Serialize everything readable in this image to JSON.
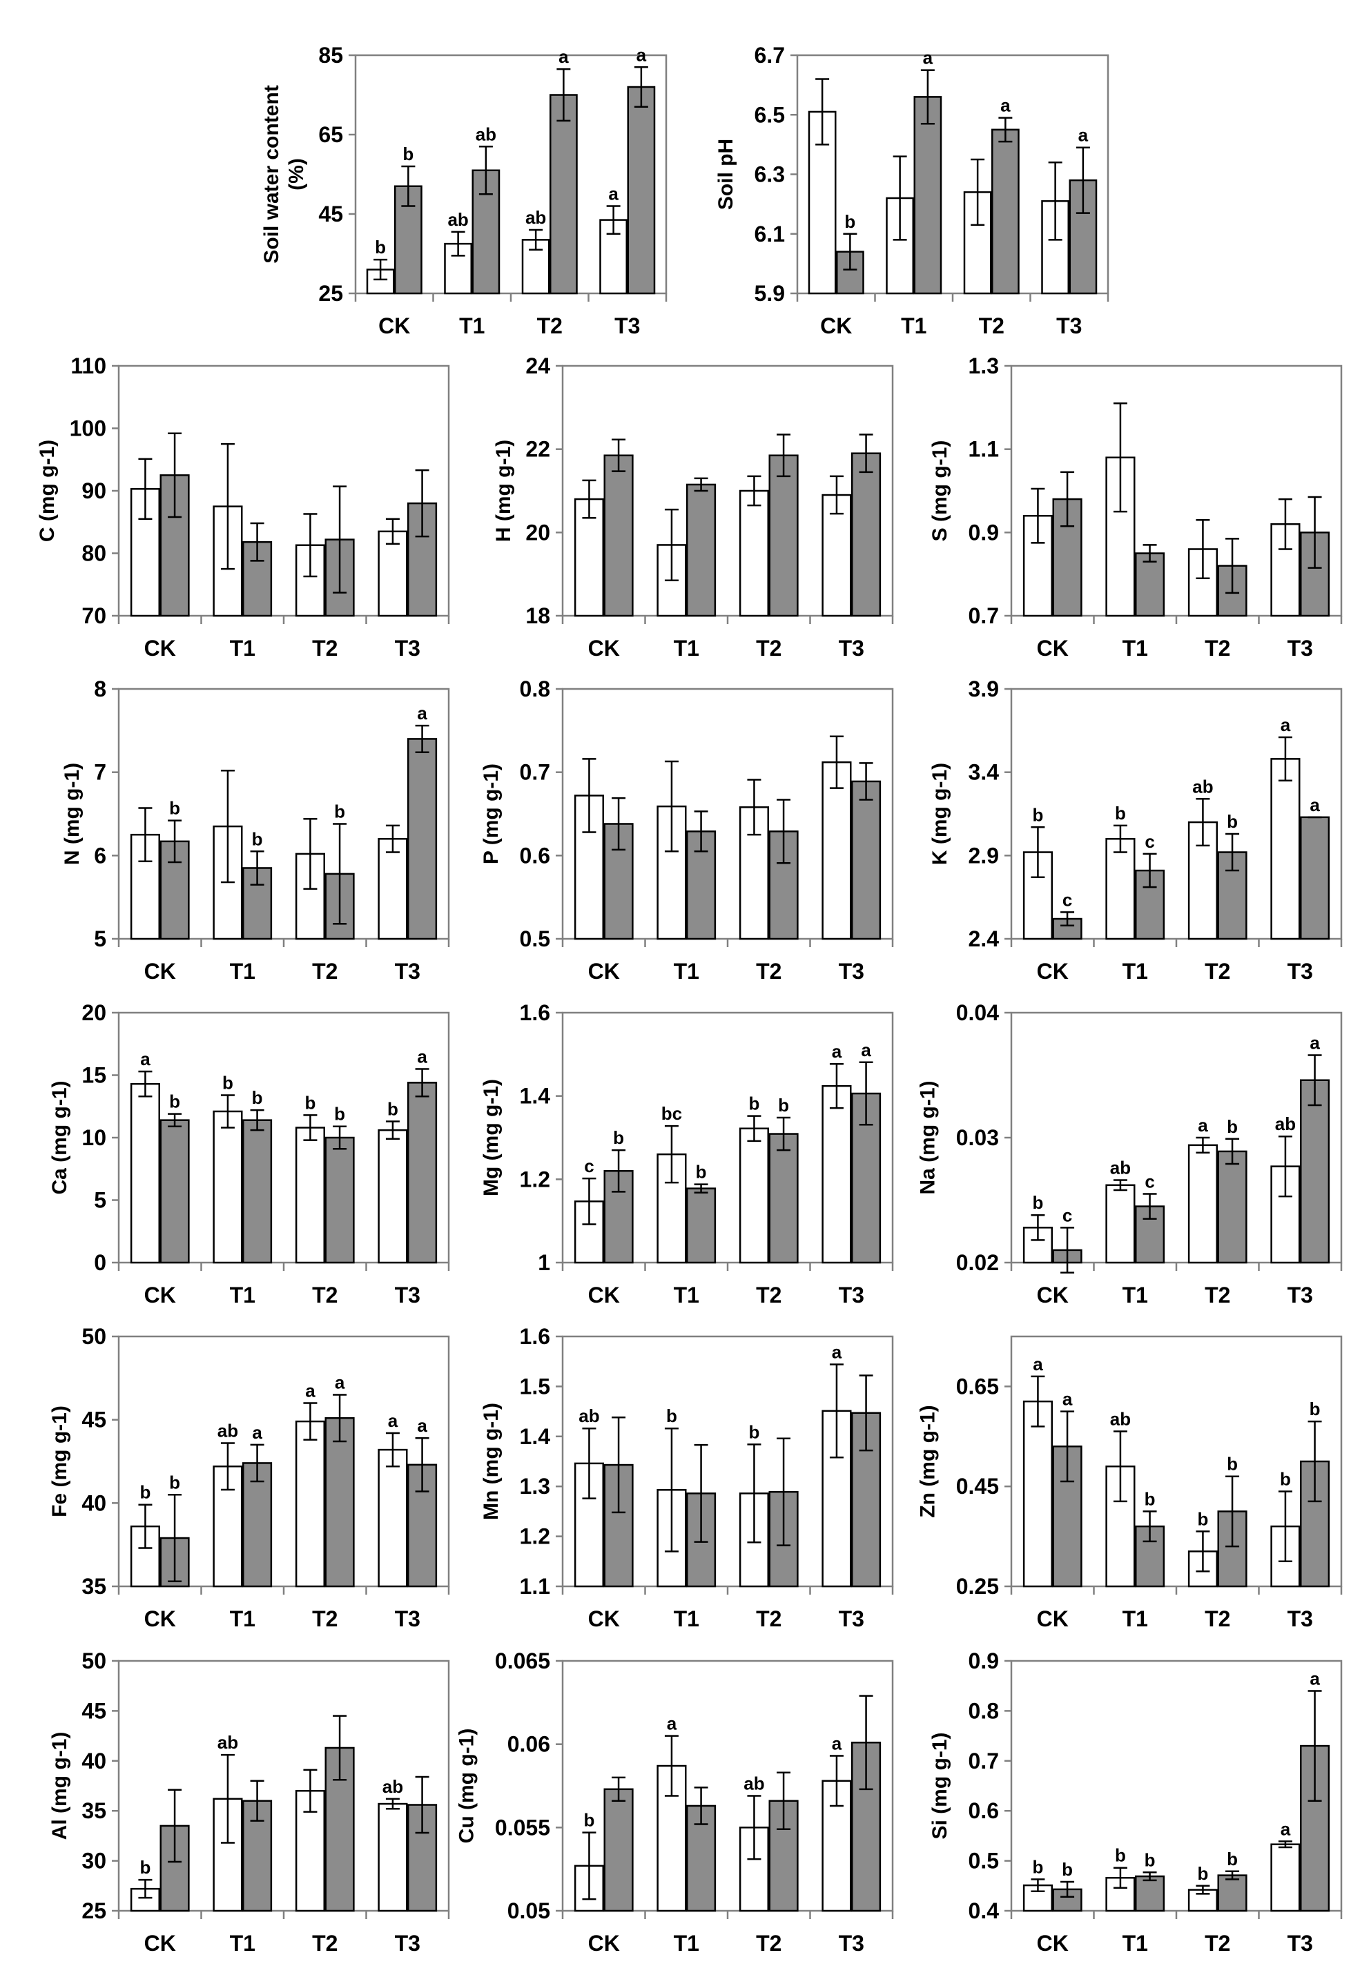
{
  "categories": [
    "CK",
    "T1",
    "T2",
    "T3"
  ],
  "colors": {
    "control": "#ffffff",
    "treated": "#8c8c8c",
    "frame": "#808080",
    "bar_stroke": "#000000",
    "text": "#000000"
  },
  "chart_data": [
    {
      "type": "bar",
      "ylabel_lines": [
        "Soil water content",
        "(%)"
      ],
      "ylim": [
        25,
        85
      ],
      "ticks": [
        25,
        45,
        65,
        85
      ],
      "series": [
        {
          "name": "control",
          "values": [
            31,
            37.5,
            38.5,
            43.5
          ],
          "errors": [
            2.5,
            3,
            2.5,
            3.5
          ],
          "letters": [
            "b",
            "ab",
            "ab",
            "a"
          ]
        },
        {
          "name": "treated",
          "values": [
            52,
            56,
            75,
            77
          ],
          "errors": [
            5,
            6,
            6.5,
            5
          ],
          "letters": [
            "b",
            "ab",
            "a",
            "a"
          ]
        }
      ]
    },
    {
      "type": "bar",
      "ylabel_lines": [
        "Soil pH"
      ],
      "ylim": [
        5.9,
        6.7
      ],
      "ticks": [
        5.9,
        6.1,
        6.3,
        6.5,
        6.7
      ],
      "series": [
        {
          "name": "control",
          "values": [
            6.51,
            6.22,
            6.24,
            6.21
          ],
          "errors": [
            0.11,
            0.14,
            0.11,
            0.13
          ],
          "letters": [
            "",
            "",
            "",
            ""
          ]
        },
        {
          "name": "treated",
          "values": [
            6.04,
            6.56,
            6.45,
            6.28
          ],
          "errors": [
            0.06,
            0.09,
            0.04,
            0.11
          ],
          "letters": [
            "b",
            "a",
            "a",
            "a"
          ]
        }
      ]
    },
    {
      "type": "bar",
      "ylabel_lines": [
        "C (mg g-1)"
      ],
      "ylim": [
        70,
        110
      ],
      "ticks": [
        70,
        80,
        90,
        100,
        110
      ],
      "series": [
        {
          "name": "control",
          "values": [
            90.3,
            87.5,
            81.3,
            83.5
          ],
          "errors": [
            4.8,
            10,
            5,
            2
          ],
          "letters": [
            "",
            "",
            "",
            ""
          ]
        },
        {
          "name": "treated",
          "values": [
            92.5,
            81.8,
            82.2,
            88
          ],
          "errors": [
            6.7,
            3,
            8.5,
            5.3
          ],
          "letters": [
            "",
            "",
            "",
            ""
          ]
        }
      ]
    },
    {
      "type": "bar",
      "ylabel_lines": [
        "H (mg g-1)"
      ],
      "ylim": [
        18,
        24
      ],
      "ticks": [
        18,
        20,
        22,
        24
      ],
      "series": [
        {
          "name": "control",
          "values": [
            20.8,
            19.7,
            21,
            20.9
          ],
          "errors": [
            0.45,
            0.85,
            0.35,
            0.45
          ],
          "letters": [
            "",
            "",
            "",
            ""
          ]
        },
        {
          "name": "treated",
          "values": [
            21.85,
            21.15,
            21.85,
            21.9
          ],
          "errors": [
            0.38,
            0.15,
            0.5,
            0.45
          ],
          "letters": [
            "",
            "",
            "",
            ""
          ]
        }
      ]
    },
    {
      "type": "bar",
      "ylabel_lines": [
        "S (mg g-1)"
      ],
      "ylim": [
        0.7,
        1.3
      ],
      "ticks": [
        0.7,
        0.9,
        1.1,
        1.3
      ],
      "series": [
        {
          "name": "control",
          "values": [
            0.94,
            1.08,
            0.86,
            0.92
          ],
          "errors": [
            0.065,
            0.13,
            0.07,
            0.06
          ],
          "letters": [
            "",
            "",
            "",
            ""
          ]
        },
        {
          "name": "treated",
          "values": [
            0.98,
            0.85,
            0.82,
            0.9
          ],
          "errors": [
            0.065,
            0.02,
            0.065,
            0.085
          ],
          "letters": [
            "",
            "",
            "",
            ""
          ]
        }
      ]
    },
    {
      "type": "bar",
      "ylabel_lines": [
        "N (mg g-1)"
      ],
      "ylim": [
        5,
        8
      ],
      "ticks": [
        5,
        6,
        7,
        8
      ],
      "series": [
        {
          "name": "control",
          "values": [
            6.25,
            6.35,
            6.02,
            6.2
          ],
          "errors": [
            0.32,
            0.67,
            0.42,
            0.16
          ],
          "letters": [
            "",
            "",
            "",
            ""
          ]
        },
        {
          "name": "treated",
          "values": [
            6.17,
            5.85,
            5.78,
            7.4
          ],
          "errors": [
            0.25,
            0.2,
            0.6,
            0.16
          ],
          "letters": [
            "b",
            "b",
            "b",
            "a"
          ]
        }
      ]
    },
    {
      "type": "bar",
      "ylabel_lines": [
        "P (mg g-1)"
      ],
      "ylim": [
        0.5,
        0.8
      ],
      "ticks": [
        0.5,
        0.6,
        0.7,
        0.8
      ],
      "series": [
        {
          "name": "control",
          "values": [
            0.672,
            0.659,
            0.658,
            0.712
          ],
          "errors": [
            0.044,
            0.054,
            0.033,
            0.031
          ],
          "letters": [
            "",
            "",
            "",
            ""
          ]
        },
        {
          "name": "treated",
          "values": [
            0.638,
            0.629,
            0.629,
            0.689
          ],
          "errors": [
            0.031,
            0.024,
            0.038,
            0.022
          ],
          "letters": [
            "",
            "",
            "",
            ""
          ]
        }
      ]
    },
    {
      "type": "bar",
      "ylabel_lines": [
        "K (mg g-1)"
      ],
      "ylim": [
        2.4,
        3.9
      ],
      "ticks": [
        2.4,
        2.9,
        3.4,
        3.9
      ],
      "series": [
        {
          "name": "control",
          "values": [
            2.92,
            3.0,
            3.1,
            3.48
          ],
          "errors": [
            0.15,
            0.08,
            0.14,
            0.13
          ],
          "letters": [
            "b",
            "b",
            "ab",
            "a"
          ]
        },
        {
          "name": "treated",
          "values": [
            2.52,
            2.81,
            2.92,
            3.13
          ],
          "errors": [
            0.04,
            0.1,
            0.11,
            0.0
          ],
          "letters": [
            "c",
            "c",
            "b",
            "a"
          ]
        }
      ]
    },
    {
      "type": "bar",
      "ylabel_lines": [
        "Ca (mg g-1)"
      ],
      "ylim": [
        0,
        20
      ],
      "ticks": [
        0,
        5,
        10,
        15,
        20
      ],
      "series": [
        {
          "name": "control",
          "values": [
            14.3,
            12.1,
            10.8,
            10.6
          ],
          "errors": [
            1,
            1.3,
            1,
            0.7
          ],
          "letters": [
            "a",
            "b",
            "b",
            "b"
          ]
        },
        {
          "name": "treated",
          "values": [
            11.4,
            11.4,
            10,
            14.4
          ],
          "errors": [
            0.5,
            0.8,
            0.9,
            1.1
          ],
          "letters": [
            "b",
            "b",
            "b",
            "a"
          ]
        }
      ]
    },
    {
      "type": "bar",
      "ylabel_lines": [
        "Mg (mg g-1)"
      ],
      "ylim": [
        1,
        1.6
      ],
      "ticks": [
        1,
        1.2,
        1.4,
        1.6
      ],
      "series": [
        {
          "name": "control",
          "values": [
            1.147,
            1.26,
            1.322,
            1.424
          ],
          "errors": [
            0.055,
            0.068,
            0.03,
            0.053
          ],
          "letters": [
            "c",
            "bc",
            "b",
            "a"
          ]
        },
        {
          "name": "treated",
          "values": [
            1.22,
            1.178,
            1.309,
            1.406
          ],
          "errors": [
            0.05,
            0.01,
            0.039,
            0.075
          ],
          "letters": [
            "b",
            "b",
            "b",
            "a"
          ]
        }
      ]
    },
    {
      "type": "bar",
      "ylabel_lines": [
        "Na (mg g-1)"
      ],
      "ylim": [
        0.02,
        0.04
      ],
      "ticks": [
        0.02,
        0.03,
        0.04
      ],
      "series": [
        {
          "name": "control",
          "values": [
            0.0228,
            0.0262,
            0.0294,
            0.0277
          ],
          "errors": [
            0.001,
            0.0004,
            0.0006,
            0.0024
          ],
          "letters": [
            "b",
            "ab",
            "a",
            "ab"
          ]
        },
        {
          "name": "treated",
          "values": [
            0.021,
            0.0245,
            0.0289,
            0.0346
          ],
          "errors": [
            0.0018,
            0.001,
            0.001,
            0.002
          ],
          "letters": [
            "c",
            "c",
            "b",
            "a"
          ]
        }
      ]
    },
    {
      "type": "bar",
      "ylabel_lines": [
        "Fe (mg g-1)"
      ],
      "ylim": [
        35,
        50
      ],
      "ticks": [
        35,
        40,
        45,
        50
      ],
      "series": [
        {
          "name": "control",
          "values": [
            38.6,
            42.2,
            44.9,
            43.2
          ],
          "errors": [
            1.3,
            1.4,
            1.1,
            1
          ],
          "letters": [
            "b",
            "ab",
            "a",
            "a"
          ]
        },
        {
          "name": "treated",
          "values": [
            37.9,
            42.4,
            45.1,
            42.3
          ],
          "errors": [
            2.6,
            1.1,
            1.4,
            1.6
          ],
          "letters": [
            "b",
            "a",
            "a",
            "a"
          ]
        }
      ]
    },
    {
      "type": "bar",
      "ylabel_lines": [
        "Mn (mg g-1)"
      ],
      "ylim": [
        1.1,
        1.6
      ],
      "ticks": [
        1.1,
        1.2,
        1.3,
        1.4,
        1.5,
        1.6
      ],
      "series": [
        {
          "name": "control",
          "values": [
            1.346,
            1.293,
            1.286,
            1.451
          ],
          "errors": [
            0.07,
            0.123,
            0.098,
            0.093
          ],
          "letters": [
            "ab",
            "b",
            "b",
            "a"
          ]
        },
        {
          "name": "treated",
          "values": [
            1.343,
            1.286,
            1.289,
            1.447
          ],
          "errors": [
            0.095,
            0.097,
            0.107,
            0.075
          ],
          "letters": [
            "",
            "",
            "",
            ""
          ]
        }
      ]
    },
    {
      "type": "bar",
      "ylabel_lines": [
        "Zn (mg g-1)"
      ],
      "ylim": [
        0.25,
        0.75
      ],
      "ticks": [
        0.25,
        0.45,
        0.65
      ],
      "series": [
        {
          "name": "control",
          "values": [
            0.62,
            0.49,
            0.32,
            0.37
          ],
          "errors": [
            0.05,
            0.07,
            0.04,
            0.07
          ],
          "letters": [
            "a",
            "ab",
            "b",
            "b"
          ]
        },
        {
          "name": "treated",
          "values": [
            0.53,
            0.37,
            0.4,
            0.5
          ],
          "errors": [
            0.07,
            0.03,
            0.07,
            0.08
          ],
          "letters": [
            "a",
            "b",
            "b",
            "b"
          ]
        }
      ]
    },
    {
      "type": "bar",
      "ylabel_lines": [
        "Al (mg g-1)"
      ],
      "ylim": [
        25,
        50
      ],
      "ticks": [
        25,
        30,
        35,
        40,
        45,
        50
      ],
      "series": [
        {
          "name": "control",
          "values": [
            27.2,
            36.2,
            37,
            35.7
          ],
          "errors": [
            0.9,
            4.4,
            2.1,
            0.5
          ],
          "letters": [
            "b",
            "ab",
            "",
            "ab"
          ]
        },
        {
          "name": "treated",
          "values": [
            33.5,
            36,
            41.3,
            35.6
          ],
          "errors": [
            3.6,
            2,
            3.2,
            2.8
          ],
          "letters": [
            "",
            "",
            "",
            ""
          ]
        }
      ]
    },
    {
      "type": "bar",
      "ylabel_lines": [
        "Cu (mg g-1)"
      ],
      "ylim": [
        0.05,
        0.065
      ],
      "ticks": [
        0.05,
        0.055,
        0.06,
        0.065
      ],
      "series": [
        {
          "name": "control",
          "values": [
            0.0527,
            0.0587,
            0.055,
            0.0578
          ],
          "errors": [
            0.002,
            0.0018,
            0.0019,
            0.0015
          ],
          "letters": [
            "b",
            "a",
            "ab",
            "a"
          ]
        },
        {
          "name": "treated",
          "values": [
            0.0573,
            0.0563,
            0.0566,
            0.0601
          ],
          "errors": [
            0.0007,
            0.0011,
            0.0017,
            0.0028
          ],
          "letters": [
            "",
            "",
            "",
            ""
          ]
        }
      ]
    },
    {
      "type": "bar",
      "ylabel_lines": [
        "Si (mg g-1)"
      ],
      "ylim": [
        0.4,
        0.9
      ],
      "ticks": [
        0.4,
        0.5,
        0.6,
        0.7,
        0.8,
        0.9
      ],
      "series": [
        {
          "name": "control",
          "values": [
            0.451,
            0.466,
            0.442,
            0.533
          ],
          "errors": [
            0.012,
            0.02,
            0.008,
            0.006
          ],
          "letters": [
            "b",
            "b",
            "b",
            "a"
          ]
        },
        {
          "name": "treated",
          "values": [
            0.443,
            0.469,
            0.471,
            0.73
          ],
          "errors": [
            0.015,
            0.008,
            0.008,
            0.11
          ],
          "letters": [
            "b",
            "b",
            "b",
            "a"
          ]
        }
      ]
    }
  ]
}
